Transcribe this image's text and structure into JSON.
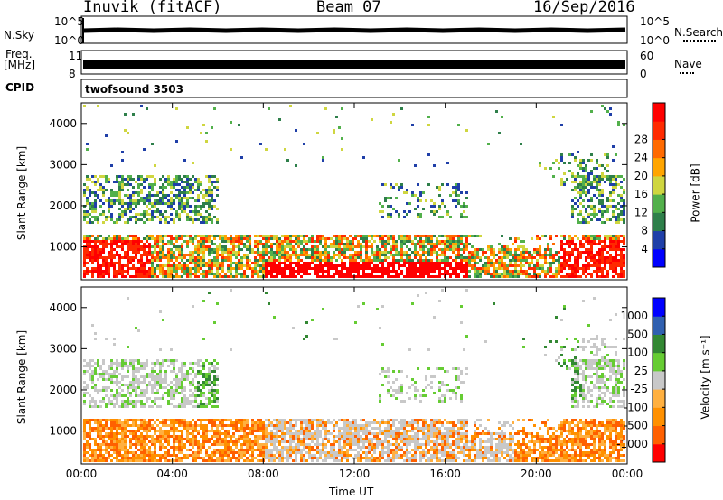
{
  "header": {
    "station": "Inuvik (fitACF)",
    "beam": "Beam 07",
    "date": "16/Sep/2016"
  },
  "nsky": {
    "label": "N.Sky",
    "ticks": [
      "10^5",
      "10^0"
    ],
    "right_ticks": [
      "10^5",
      "10^0"
    ],
    "right_label": "N.Search"
  },
  "freq": {
    "label_top": "Freq.",
    "label_bottom": "[MHz]",
    "ticks": [
      "11",
      "8"
    ],
    "right_ticks": [
      "60",
      "0"
    ],
    "right_label": "Nave"
  },
  "cpid": {
    "label": "CPID",
    "text": "twofsound 3503"
  },
  "colors": {
    "power": [
      "#0000ff",
      "#1f3fa8",
      "#2e7f4a",
      "#52b04b",
      "#cfd640",
      "#ffa500",
      "#ff6a00",
      "#ff2a00",
      "#ff0000"
    ],
    "velocity": [
      "#ff0000",
      "#ff6000",
      "#ff9000",
      "#ffb040",
      "#c8c8c8",
      "#66cc33",
      "#338833",
      "#3060b0",
      "#0000ff"
    ]
  },
  "chart_data": [
    {
      "type": "heatmap",
      "name": "power",
      "ylabel": "Slant Range [km]",
      "yticks": [
        1000,
        2000,
        3000,
        4000
      ],
      "ylim": [
        200,
        4500
      ],
      "xticks": [
        "00:00",
        "04:00",
        "08:00",
        "12:00",
        "16:00",
        "20:00",
        "00:00"
      ],
      "colorbar_label": "Power [dB]",
      "colorbar_ticks": [
        4,
        8,
        12,
        16,
        20,
        24,
        28
      ]
    },
    {
      "type": "heatmap",
      "name": "velocity",
      "ylabel": "Slant Range [km]",
      "yticks": [
        1000,
        2000,
        3000,
        4000
      ],
      "ylim": [
        200,
        4500
      ],
      "xticks": [
        "00:00",
        "04:00",
        "08:00",
        "12:00",
        "16:00",
        "20:00",
        "00:00"
      ],
      "xlabel": "Time UT",
      "colorbar_label": "Velocity [m s⁻¹]",
      "colorbar_ticks": [
        1000,
        500,
        100,
        25,
        -25,
        -100,
        -500,
        -1000
      ]
    }
  ]
}
